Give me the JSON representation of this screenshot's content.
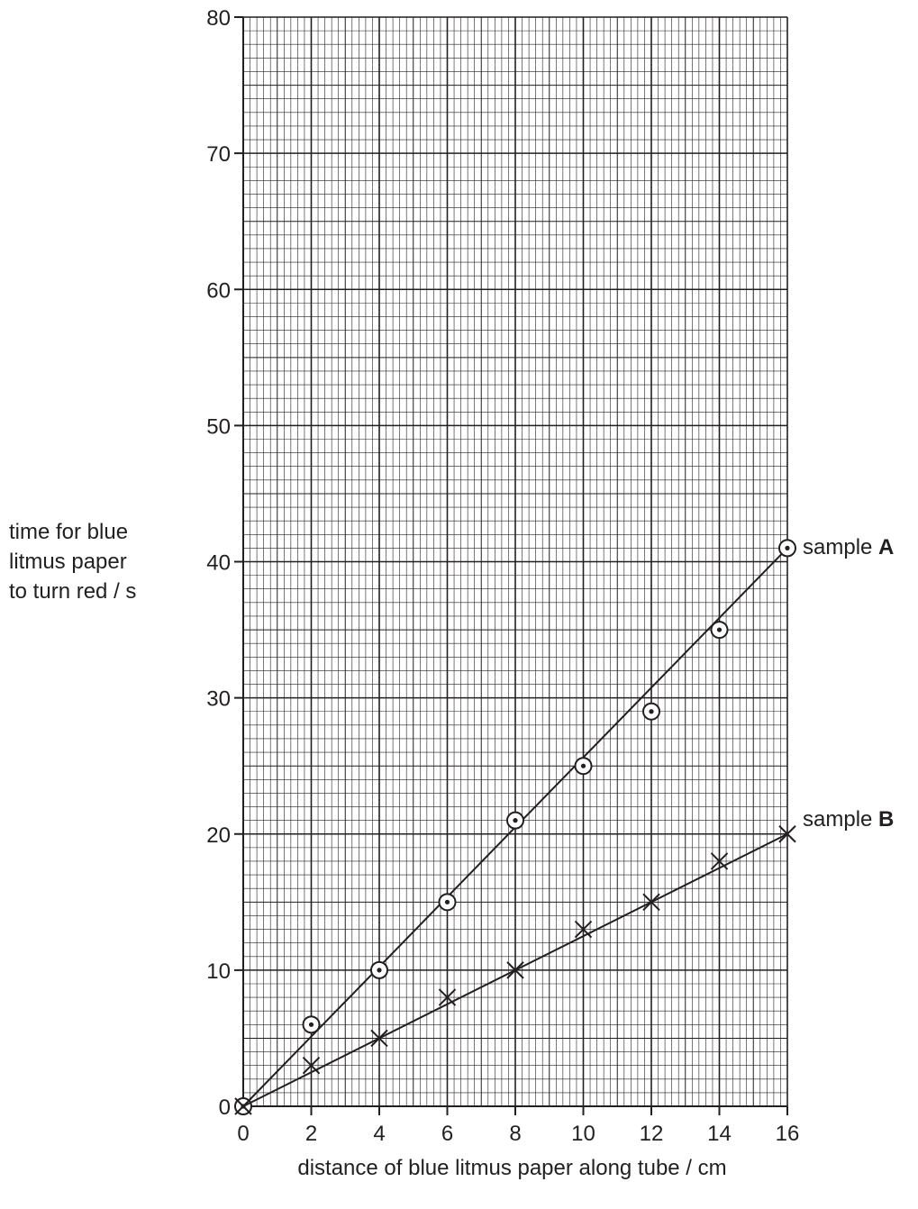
{
  "chart_data": {
    "type": "scatter",
    "xlabel": "distance of blue litmus paper along tube / cm",
    "ylabel_lines": [
      "time for blue",
      "litmus paper",
      "to turn red / s"
    ],
    "xlim": [
      0,
      16
    ],
    "ylim": [
      0,
      80
    ],
    "x_ticks": [
      0,
      2,
      4,
      6,
      8,
      10,
      12,
      14,
      16
    ],
    "y_ticks": [
      0,
      10,
      20,
      30,
      40,
      50,
      60,
      70,
      80
    ],
    "grid": true,
    "series": [
      {
        "name": "sample A",
        "label_prefix": "sample",
        "label_letter": "A",
        "marker": "circle-dot",
        "x": [
          0,
          2,
          4,
          6,
          8,
          10,
          12,
          14,
          16
        ],
        "y": [
          0,
          6,
          10,
          15,
          21,
          25,
          29,
          35,
          41
        ],
        "line_of_best_fit": [
          [
            0,
            0
          ],
          [
            16,
            41
          ]
        ]
      },
      {
        "name": "sample B",
        "label_prefix": "sample",
        "label_letter": "B",
        "marker": "cross",
        "x": [
          0,
          2,
          4,
          6,
          8,
          10,
          12,
          14,
          16
        ],
        "y": [
          0,
          3,
          5,
          8,
          10,
          13,
          15,
          18,
          20
        ],
        "line_of_best_fit": [
          [
            0,
            0
          ],
          [
            16,
            20
          ]
        ]
      }
    ]
  },
  "colors": {
    "ink": "#231f20",
    "background": "#ffffff"
  }
}
